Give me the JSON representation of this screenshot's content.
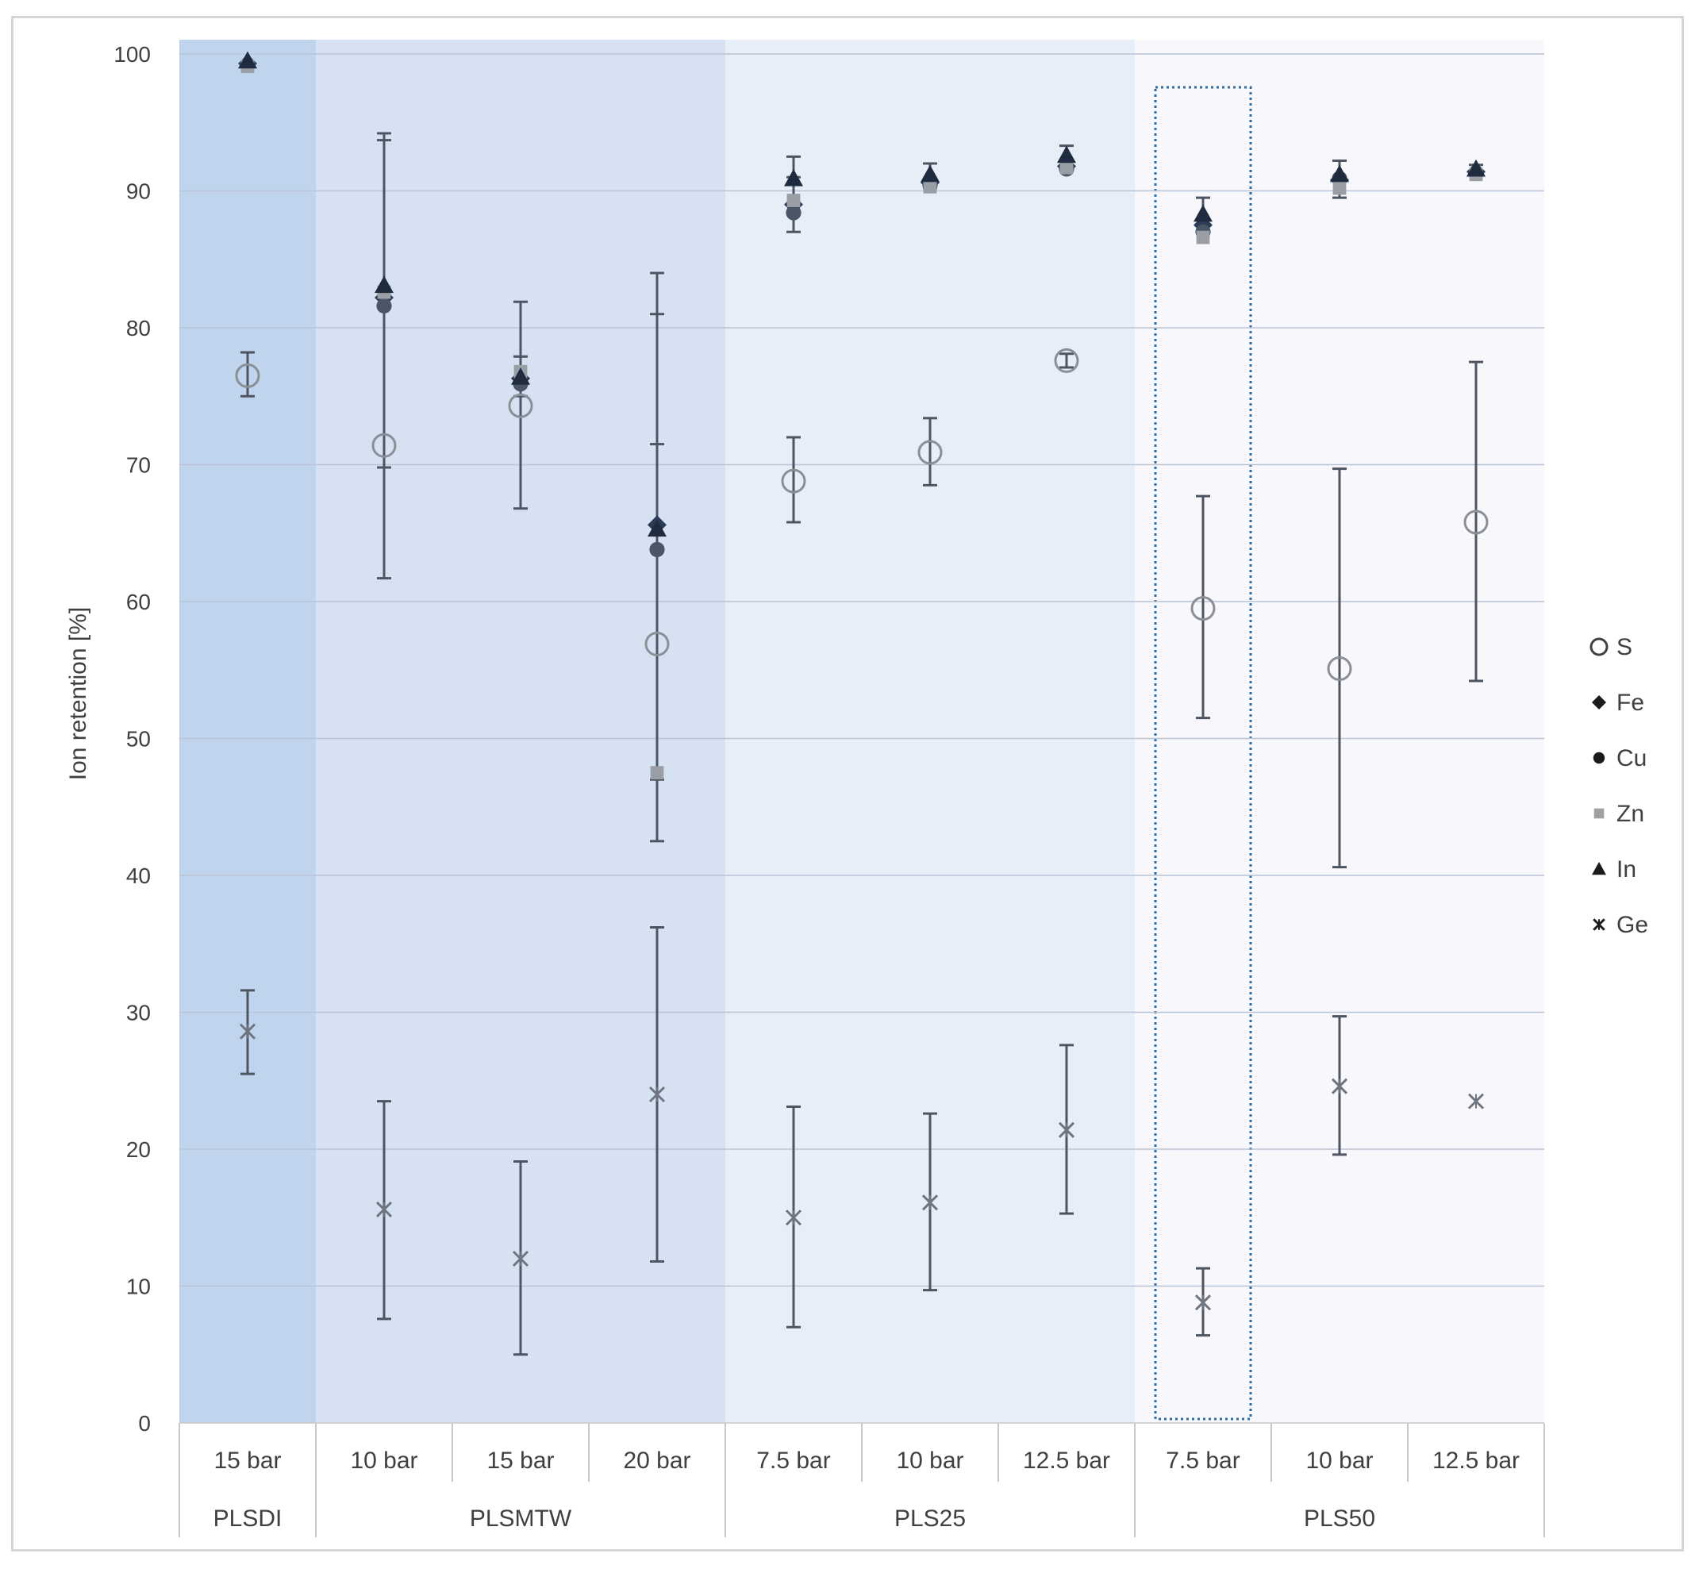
{
  "chart_data": {
    "type": "scatter",
    "title": "",
    "xlabel": "",
    "ylabel": "Ion retention [%]",
    "ylim": [
      0,
      100
    ],
    "yticks": [
      0,
      10,
      20,
      30,
      40,
      50,
      60,
      70,
      80,
      90,
      100
    ],
    "grid": true,
    "legend_position": "right",
    "groups": [
      {
        "label": "PLSDI",
        "span": 1,
        "color": "#c1d4ee"
      },
      {
        "label": "PLSMTW",
        "span": 3,
        "color": "#d6e2f2"
      },
      {
        "label": "PLS25",
        "span": 3,
        "color": "#e8eef8"
      },
      {
        "label": "PLS50",
        "span": 3,
        "color": "#f7f7fc"
      }
    ],
    "categories": [
      "15 bar",
      "10 bar",
      "15 bar",
      "20 bar",
      "7.5 bar",
      "10 bar",
      "12.5 bar",
      "7.5 bar",
      "10 bar",
      "12.5 bar"
    ],
    "highlighted_category_index": 7,
    "series": [
      {
        "name": "S",
        "marker": "circle-open",
        "color": "#8a8f96",
        "values": [
          76.5,
          71.4,
          74.3,
          56.9,
          68.8,
          70.9,
          77.6,
          59.5,
          55.1,
          65.8
        ],
        "err_low": [
          75.0,
          69.8,
          66.8,
          42.5,
          65.8,
          68.5,
          77.1,
          51.5,
          40.6,
          54.2
        ],
        "err_high": [
          78.2,
          93.7,
          81.9,
          71.5,
          72.0,
          73.4,
          78.1,
          67.7,
          69.7,
          77.5
        ]
      },
      {
        "name": "Fe",
        "marker": "diamond",
        "color": "#2b3a55",
        "values": [
          99.3,
          82.2,
          76.3,
          65.6,
          89.0,
          90.6,
          91.8,
          87.5,
          90.8,
          91.4
        ],
        "err_low": [
          null,
          null,
          null,
          47.0,
          87.0,
          null,
          null,
          null,
          null,
          null
        ],
        "err_high": [
          null,
          null,
          null,
          81.0,
          91.0,
          null,
          null,
          null,
          null,
          null
        ]
      },
      {
        "name": "Cu",
        "marker": "circle",
        "color": "#4a5668",
        "values": [
          99.2,
          81.6,
          75.9,
          63.8,
          88.4,
          90.4,
          91.6,
          87.0,
          90.9,
          91.3
        ],
        "err_low": [
          null,
          61.7,
          null,
          null,
          null,
          null,
          null,
          null,
          null,
          null
        ],
        "err_high": [
          null,
          94.2,
          null,
          null,
          null,
          null,
          null,
          null,
          null,
          null
        ]
      },
      {
        "name": "Zn",
        "marker": "square",
        "color": "#9a9ea5",
        "values": [
          99.1,
          82.6,
          76.8,
          47.5,
          89.3,
          90.3,
          91.7,
          86.6,
          90.2,
          91.2
        ],
        "err_low": [
          null,
          null,
          null,
          null,
          null,
          null,
          null,
          null,
          89.5,
          null
        ],
        "err_high": [
          null,
          null,
          null,
          84.0,
          null,
          null,
          null,
          null,
          null,
          null
        ]
      },
      {
        "name": "In",
        "marker": "triangle",
        "color": "#1f2c40",
        "values": [
          99.5,
          83.1,
          76.4,
          65.3,
          90.9,
          91.2,
          92.6,
          88.3,
          91.2,
          91.6
        ],
        "err_low": [
          null,
          null,
          75.0,
          null,
          null,
          90.2,
          91.6,
          87.0,
          null,
          null
        ],
        "err_high": [
          null,
          null,
          77.9,
          null,
          92.5,
          92.0,
          93.3,
          89.5,
          92.2,
          91.9
        ]
      },
      {
        "name": "Ge",
        "marker": "asterisk",
        "color": "#6f7580",
        "values": [
          28.6,
          15.6,
          12.0,
          24.0,
          15.0,
          16.1,
          21.4,
          8.8,
          24.6,
          23.5
        ],
        "err_low": [
          25.5,
          7.6,
          5.0,
          11.8,
          7.0,
          9.7,
          15.3,
          6.4,
          19.6,
          null
        ],
        "err_high": [
          31.6,
          23.5,
          19.1,
          36.2,
          23.1,
          22.6,
          27.6,
          11.3,
          29.7,
          null
        ]
      }
    ]
  }
}
